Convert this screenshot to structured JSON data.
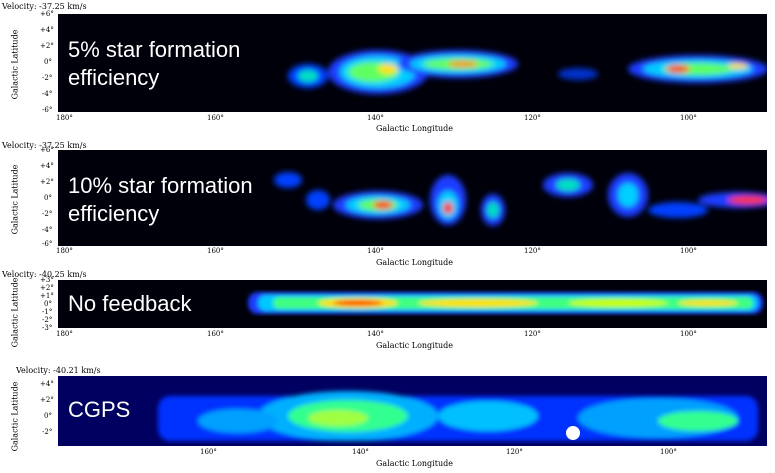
{
  "panels": [
    {
      "velocity": "Velocity: -37.25 km/s",
      "ylabel": "Galactic Latitude",
      "xlabel": "Galactic Longitude",
      "yticks": [
        "+6°",
        "+4°",
        "+2°",
        "0°",
        "-2°",
        "-4°",
        "-6°"
      ],
      "xticks": [
        "180°",
        "160°",
        "140°",
        "120°",
        "100°"
      ],
      "overlay": [
        "5% star formation",
        "efficiency"
      ]
    },
    {
      "velocity": "Velocity: -37.25 km/s",
      "ylabel": "Galactic Latitude",
      "xlabel": "Galactic Longitude",
      "yticks": [
        "+6°",
        "+4°",
        "+2°",
        "0°",
        "-2°",
        "-4°",
        "-6°"
      ],
      "xticks": [
        "180°",
        "160°",
        "140°",
        "120°",
        "100°"
      ],
      "overlay": [
        "10% star formation",
        "efficiency"
      ]
    },
    {
      "velocity": "Velocity: -40.25 km/s",
      "ylabel": "Galactic Latitude",
      "xlabel": "Galactic Longitude",
      "yticks": [
        "+3°",
        "+2°",
        "+1°",
        "0°",
        "-1°",
        "-2°",
        "-3°"
      ],
      "xticks": [
        "180°",
        "160°",
        "140°",
        "120°",
        "100°"
      ],
      "overlay": [
        "No feedback"
      ]
    },
    {
      "velocity": "Velocity: -40.21 km/s",
      "ylabel": "Galactic Latitude",
      "xlabel": "Galactic Longitude",
      "yticks": [
        "+4°",
        "+2°",
        "0°",
        "-2°"
      ],
      "xticks": [
        "160°",
        "140°",
        "120°",
        "100°"
      ],
      "overlay": [
        "CGPS"
      ]
    }
  ]
}
